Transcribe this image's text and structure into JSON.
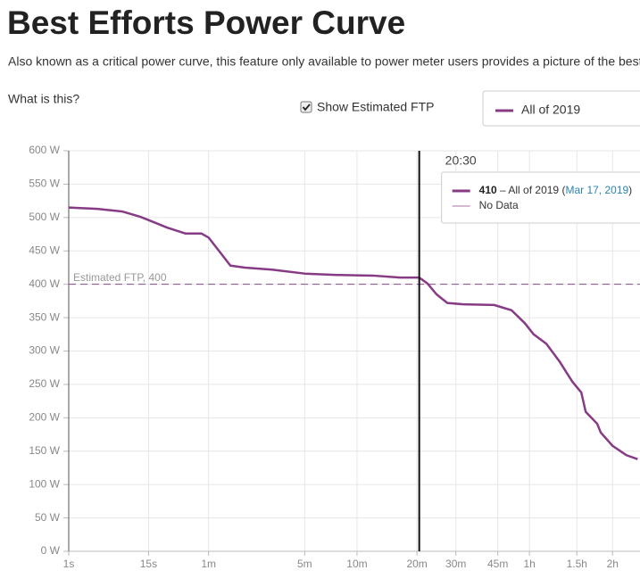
{
  "header": {
    "title": "Best Efforts Power Curve",
    "description": "Also known as a critical power curve, this feature only available to power meter users provides a picture of the best power you've sustained over time.",
    "help_link": "What is this?",
    "show_ftp_label": "Show Estimated FTP",
    "show_ftp_checked": true
  },
  "chart_data": {
    "type": "line",
    "x": [
      1,
      3,
      7,
      12,
      18,
      24,
      37,
      52,
      60,
      75,
      91,
      118,
      184,
      300,
      467,
      730,
      996,
      1230,
      1345,
      1476,
      1651,
      1942,
      2610,
      3067,
      3450,
      3737,
      4171,
      4660,
      5205,
      5600,
      5807,
      6374,
      6556,
      7200,
      8021,
      8741
    ],
    "series": [
      {
        "name": "All of 2019",
        "color": "#873b85",
        "values": [
          515,
          513,
          509,
          501,
          492,
          485,
          476,
          476,
          470,
          448,
          428,
          425,
          422,
          416,
          414,
          413,
          410,
          410,
          401,
          385,
          372,
          370,
          369,
          361,
          342,
          325,
          311,
          285,
          254,
          238,
          209,
          191,
          178,
          158,
          144,
          138
        ]
      }
    ],
    "xlim": [
      1,
      8900
    ],
    "xticks": [
      {
        "value": 1,
        "label": "1s"
      },
      {
        "value": 15,
        "label": "15s"
      },
      {
        "value": 60,
        "label": "1m"
      },
      {
        "value": 300,
        "label": "5m"
      },
      {
        "value": 600,
        "label": "10m"
      },
      {
        "value": 1200,
        "label": "20m"
      },
      {
        "value": 1800,
        "label": "30m"
      },
      {
        "value": 2700,
        "label": "45m"
      },
      {
        "value": 3600,
        "label": "1h"
      },
      {
        "value": 5400,
        "label": "1.5h"
      },
      {
        "value": 7200,
        "label": "2h"
      }
    ],
    "ylim": [
      0,
      600
    ],
    "yticks": [
      {
        "value": 0,
        "label": "0 W"
      },
      {
        "value": 50,
        "label": "50 W"
      },
      {
        "value": 100,
        "label": "100 W"
      },
      {
        "value": 150,
        "label": "150 W"
      },
      {
        "value": 200,
        "label": "200 W"
      },
      {
        "value": 250,
        "label": "250 W"
      },
      {
        "value": 300,
        "label": "300 W"
      },
      {
        "value": 350,
        "label": "350 W"
      },
      {
        "value": 400,
        "label": "400 W"
      },
      {
        "value": 450,
        "label": "450 W"
      },
      {
        "value": 500,
        "label": "500 W"
      },
      {
        "value": 550,
        "label": "550 W"
      },
      {
        "value": 600,
        "label": "600 W"
      }
    ],
    "grid": true,
    "ftp": {
      "value": 400,
      "label": "Estimated FTP, 400",
      "color": "#8a4a88"
    },
    "hover": {
      "x": 1230,
      "time_label": "20:30",
      "value": 410,
      "separator": "–",
      "open": "(",
      "date": "Mar 17, 2019",
      "close": ")",
      "no_data": "No Data",
      "no_data_color": "#c9a0c7"
    }
  }
}
